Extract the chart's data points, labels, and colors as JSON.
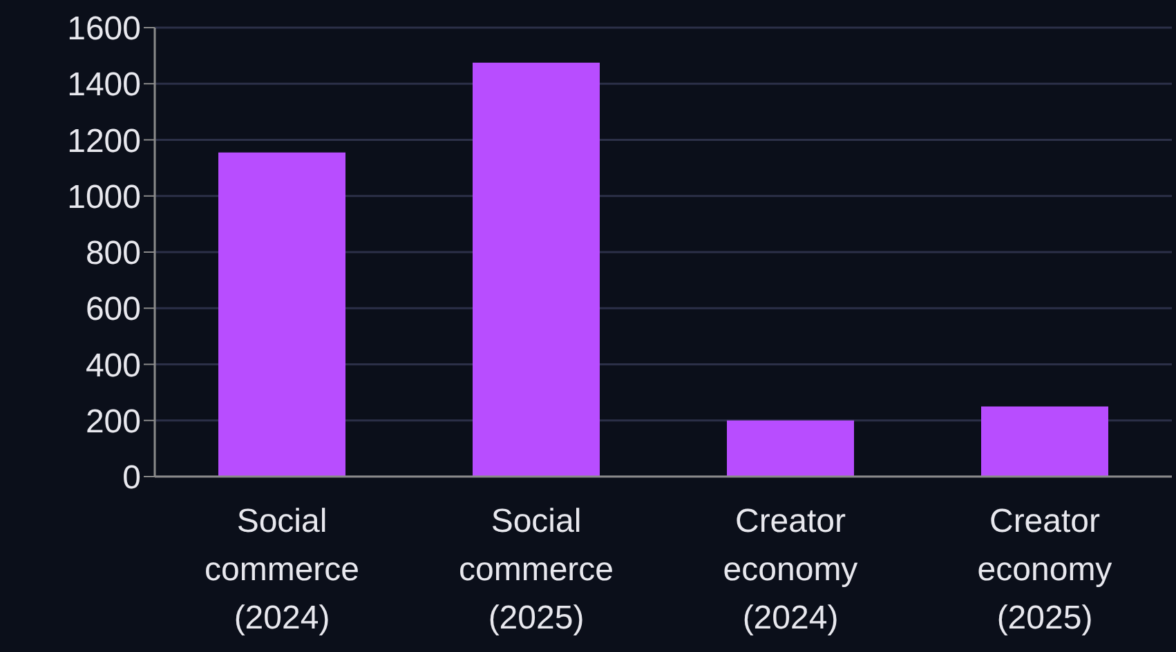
{
  "chart_data": {
    "type": "bar",
    "categories": [
      "Social commerce (2024)",
      "Social commerce (2025)",
      "Creator economy (2024)",
      "Creator economy (2025)"
    ],
    "values": [
      1155,
      1475,
      200,
      250
    ],
    "color": "#b84dff",
    "ylim": [
      0,
      1600
    ],
    "yticks": [
      0,
      200,
      400,
      600,
      800,
      1000,
      1200,
      1400,
      1600
    ],
    "grid": "y",
    "legend": false
  }
}
